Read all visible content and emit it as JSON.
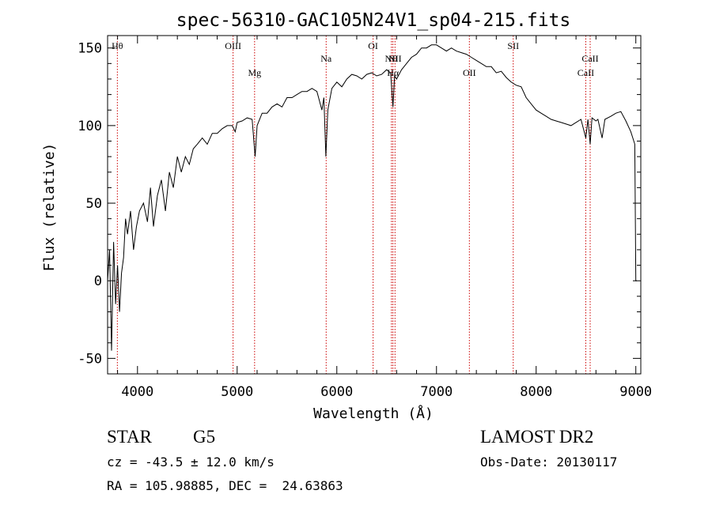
{
  "chart_data": {
    "type": "line",
    "title": "spec-56310-GAC105N24V1_sp04-215.fits",
    "xlabel": "Wavelength (Å)",
    "ylabel": "Flux (relative)",
    "xlim": [
      3700,
      9050
    ],
    "ylim": [
      -60,
      158
    ],
    "xticks": [
      4000,
      5000,
      6000,
      7000,
      8000,
      9000
    ],
    "yticks": [
      -50,
      0,
      50,
      100,
      150
    ],
    "grid": false,
    "series": [
      {
        "points": [
          [
            3700,
            0
          ],
          [
            3720,
            20
          ],
          [
            3740,
            -45
          ],
          [
            3760,
            25
          ],
          [
            3780,
            -15
          ],
          [
            3800,
            10
          ],
          [
            3820,
            -20
          ],
          [
            3840,
            5
          ],
          [
            3860,
            15
          ],
          [
            3880,
            40
          ],
          [
            3900,
            30
          ],
          [
            3930,
            45
          ],
          [
            3960,
            20
          ],
          [
            3990,
            35
          ],
          [
            4020,
            45
          ],
          [
            4060,
            50
          ],
          [
            4100,
            38
          ],
          [
            4130,
            60
          ],
          [
            4160,
            35
          ],
          [
            4200,
            55
          ],
          [
            4240,
            65
          ],
          [
            4280,
            45
          ],
          [
            4320,
            70
          ],
          [
            4360,
            60
          ],
          [
            4400,
            80
          ],
          [
            4440,
            70
          ],
          [
            4480,
            80
          ],
          [
            4520,
            75
          ],
          [
            4560,
            85
          ],
          [
            4600,
            88
          ],
          [
            4650,
            92
          ],
          [
            4700,
            88
          ],
          [
            4750,
            95
          ],
          [
            4800,
            95
          ],
          [
            4850,
            98
          ],
          [
            4900,
            100
          ],
          [
            4950,
            100
          ],
          [
            4980,
            96
          ],
          [
            5000,
            102
          ],
          [
            5050,
            103
          ],
          [
            5100,
            105
          ],
          [
            5150,
            104
          ],
          [
            5180,
            80
          ],
          [
            5200,
            100
          ],
          [
            5250,
            108
          ],
          [
            5300,
            108
          ],
          [
            5350,
            112
          ],
          [
            5400,
            114
          ],
          [
            5450,
            112
          ],
          [
            5500,
            118
          ],
          [
            5550,
            118
          ],
          [
            5600,
            120
          ],
          [
            5650,
            122
          ],
          [
            5700,
            122
          ],
          [
            5750,
            124
          ],
          [
            5800,
            122
          ],
          [
            5850,
            110
          ],
          [
            5870,
            118
          ],
          [
            5890,
            80
          ],
          [
            5910,
            110
          ],
          [
            5950,
            124
          ],
          [
            6000,
            128
          ],
          [
            6050,
            125
          ],
          [
            6100,
            130
          ],
          [
            6150,
            133
          ],
          [
            6200,
            132
          ],
          [
            6250,
            130
          ],
          [
            6300,
            133
          ],
          [
            6350,
            134
          ],
          [
            6400,
            132
          ],
          [
            6450,
            133
          ],
          [
            6500,
            136
          ],
          [
            6540,
            134
          ],
          [
            6563,
            112
          ],
          [
            6580,
            132
          ],
          [
            6600,
            130
          ],
          [
            6650,
            136
          ],
          [
            6700,
            140
          ],
          [
            6750,
            144
          ],
          [
            6800,
            146
          ],
          [
            6850,
            150
          ],
          [
            6900,
            150
          ],
          [
            6950,
            152
          ],
          [
            7000,
            152
          ],
          [
            7050,
            150
          ],
          [
            7100,
            148
          ],
          [
            7150,
            150
          ],
          [
            7200,
            148
          ],
          [
            7250,
            147
          ],
          [
            7300,
            146
          ],
          [
            7350,
            144
          ],
          [
            7400,
            142
          ],
          [
            7450,
            140
          ],
          [
            7500,
            138
          ],
          [
            7550,
            138
          ],
          [
            7600,
            134
          ],
          [
            7650,
            135
          ],
          [
            7700,
            131
          ],
          [
            7750,
            128
          ],
          [
            7800,
            126
          ],
          [
            7850,
            125
          ],
          [
            7900,
            118
          ],
          [
            7950,
            114
          ],
          [
            8000,
            110
          ],
          [
            8050,
            108
          ],
          [
            8100,
            106
          ],
          [
            8150,
            104
          ],
          [
            8200,
            103
          ],
          [
            8250,
            102
          ],
          [
            8300,
            101
          ],
          [
            8350,
            100
          ],
          [
            8400,
            102
          ],
          [
            8450,
            104
          ],
          [
            8498,
            92
          ],
          [
            8520,
            104
          ],
          [
            8542,
            88
          ],
          [
            8560,
            105
          ],
          [
            8600,
            103
          ],
          [
            8620,
            104
          ],
          [
            8662,
            92
          ],
          [
            8690,
            104
          ],
          [
            8750,
            106
          ],
          [
            8800,
            108
          ],
          [
            8850,
            109
          ],
          [
            8900,
            103
          ],
          [
            8950,
            96
          ],
          [
            8990,
            88
          ],
          [
            9000,
            0
          ],
          [
            9010,
            0
          ]
        ]
      }
    ],
    "lines": [
      {
        "label": "Hθ",
        "x": 3798,
        "label_pos": "upper"
      },
      {
        "label": "OIII",
        "x": 4959,
        "label_pos": "upper"
      },
      {
        "label": "Mg",
        "x": 5175,
        "label_pos": "lower"
      },
      {
        "label": "Na",
        "x": 5893,
        "label_pos": "middle"
      },
      {
        "label": "OI",
        "x": 6364,
        "label_pos": "upper"
      },
      {
        "label": "NII",
        "x": 6548,
        "label_pos": "middle"
      },
      {
        "label": "Hα",
        "x": 6563,
        "label_pos": "lower"
      },
      {
        "label": "NII",
        "x": 6584,
        "label_pos": "middle"
      },
      {
        "label": "OII",
        "x": 7330,
        "label_pos": "lower"
      },
      {
        "label": "SII",
        "x": 7770,
        "label_pos": "upper"
      },
      {
        "label": "CaII",
        "x": 8498,
        "label_pos": "lower"
      },
      {
        "label": "CaII",
        "x": 8542,
        "label_pos": "middle"
      }
    ]
  },
  "info": {
    "class_label": "STAR",
    "subclass_label": "G5",
    "survey_label": "LAMOST DR2",
    "cz_text": "cz = -43.5 ± 12.0 km/s",
    "obs_date_text": "Obs-Date: 20130117",
    "coords_text": "RA = 105.98885, DEC =  24.63863"
  },
  "colors": {
    "spectrum": "#000000",
    "line_marker": "#cc0000",
    "axis": "#000000"
  }
}
